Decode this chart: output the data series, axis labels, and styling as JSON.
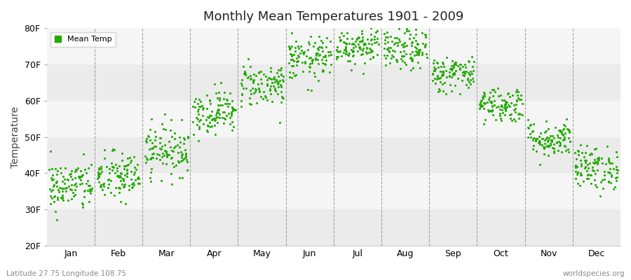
{
  "title": "Monthly Mean Temperatures 1901 - 2009",
  "ylabel": "Temperature",
  "ylim_min": 20,
  "ylim_max": 80,
  "yticks": [
    20,
    30,
    40,
    50,
    60,
    70,
    80
  ],
  "ytick_labels": [
    "20F",
    "30F",
    "40F",
    "50F",
    "60F",
    "70F",
    "80F"
  ],
  "bg_color": "#ffffff",
  "band_colors": [
    "#ebebeb",
    "#f5f5f5"
  ],
  "dot_color": "#22aa00",
  "dot_size": 5,
  "legend_label": "Mean Temp",
  "bottom_left_text": "Latitude 27.75 Longitude 108.75",
  "bottom_right_text": "worldspecies.org",
  "month_names": [
    "Jan",
    "Feb",
    "Mar",
    "Apr",
    "May",
    "Jun",
    "Jul",
    "Aug",
    "Sep",
    "Oct",
    "Nov",
    "Dec"
  ],
  "monthly_means": [
    36.5,
    39.0,
    46.5,
    57.0,
    64.5,
    71.5,
    75.5,
    74.0,
    67.5,
    59.0,
    49.5,
    41.5
  ],
  "monthly_stds": [
    3.5,
    3.5,
    3.5,
    3.0,
    3.0,
    3.0,
    2.8,
    2.8,
    2.5,
    2.5,
    2.5,
    3.0
  ],
  "n_years": 109,
  "seed": 42,
  "dashed_color": "#999999",
  "vline_positions": [
    1,
    2,
    3,
    4,
    5,
    6,
    7,
    8,
    9,
    10,
    11
  ]
}
